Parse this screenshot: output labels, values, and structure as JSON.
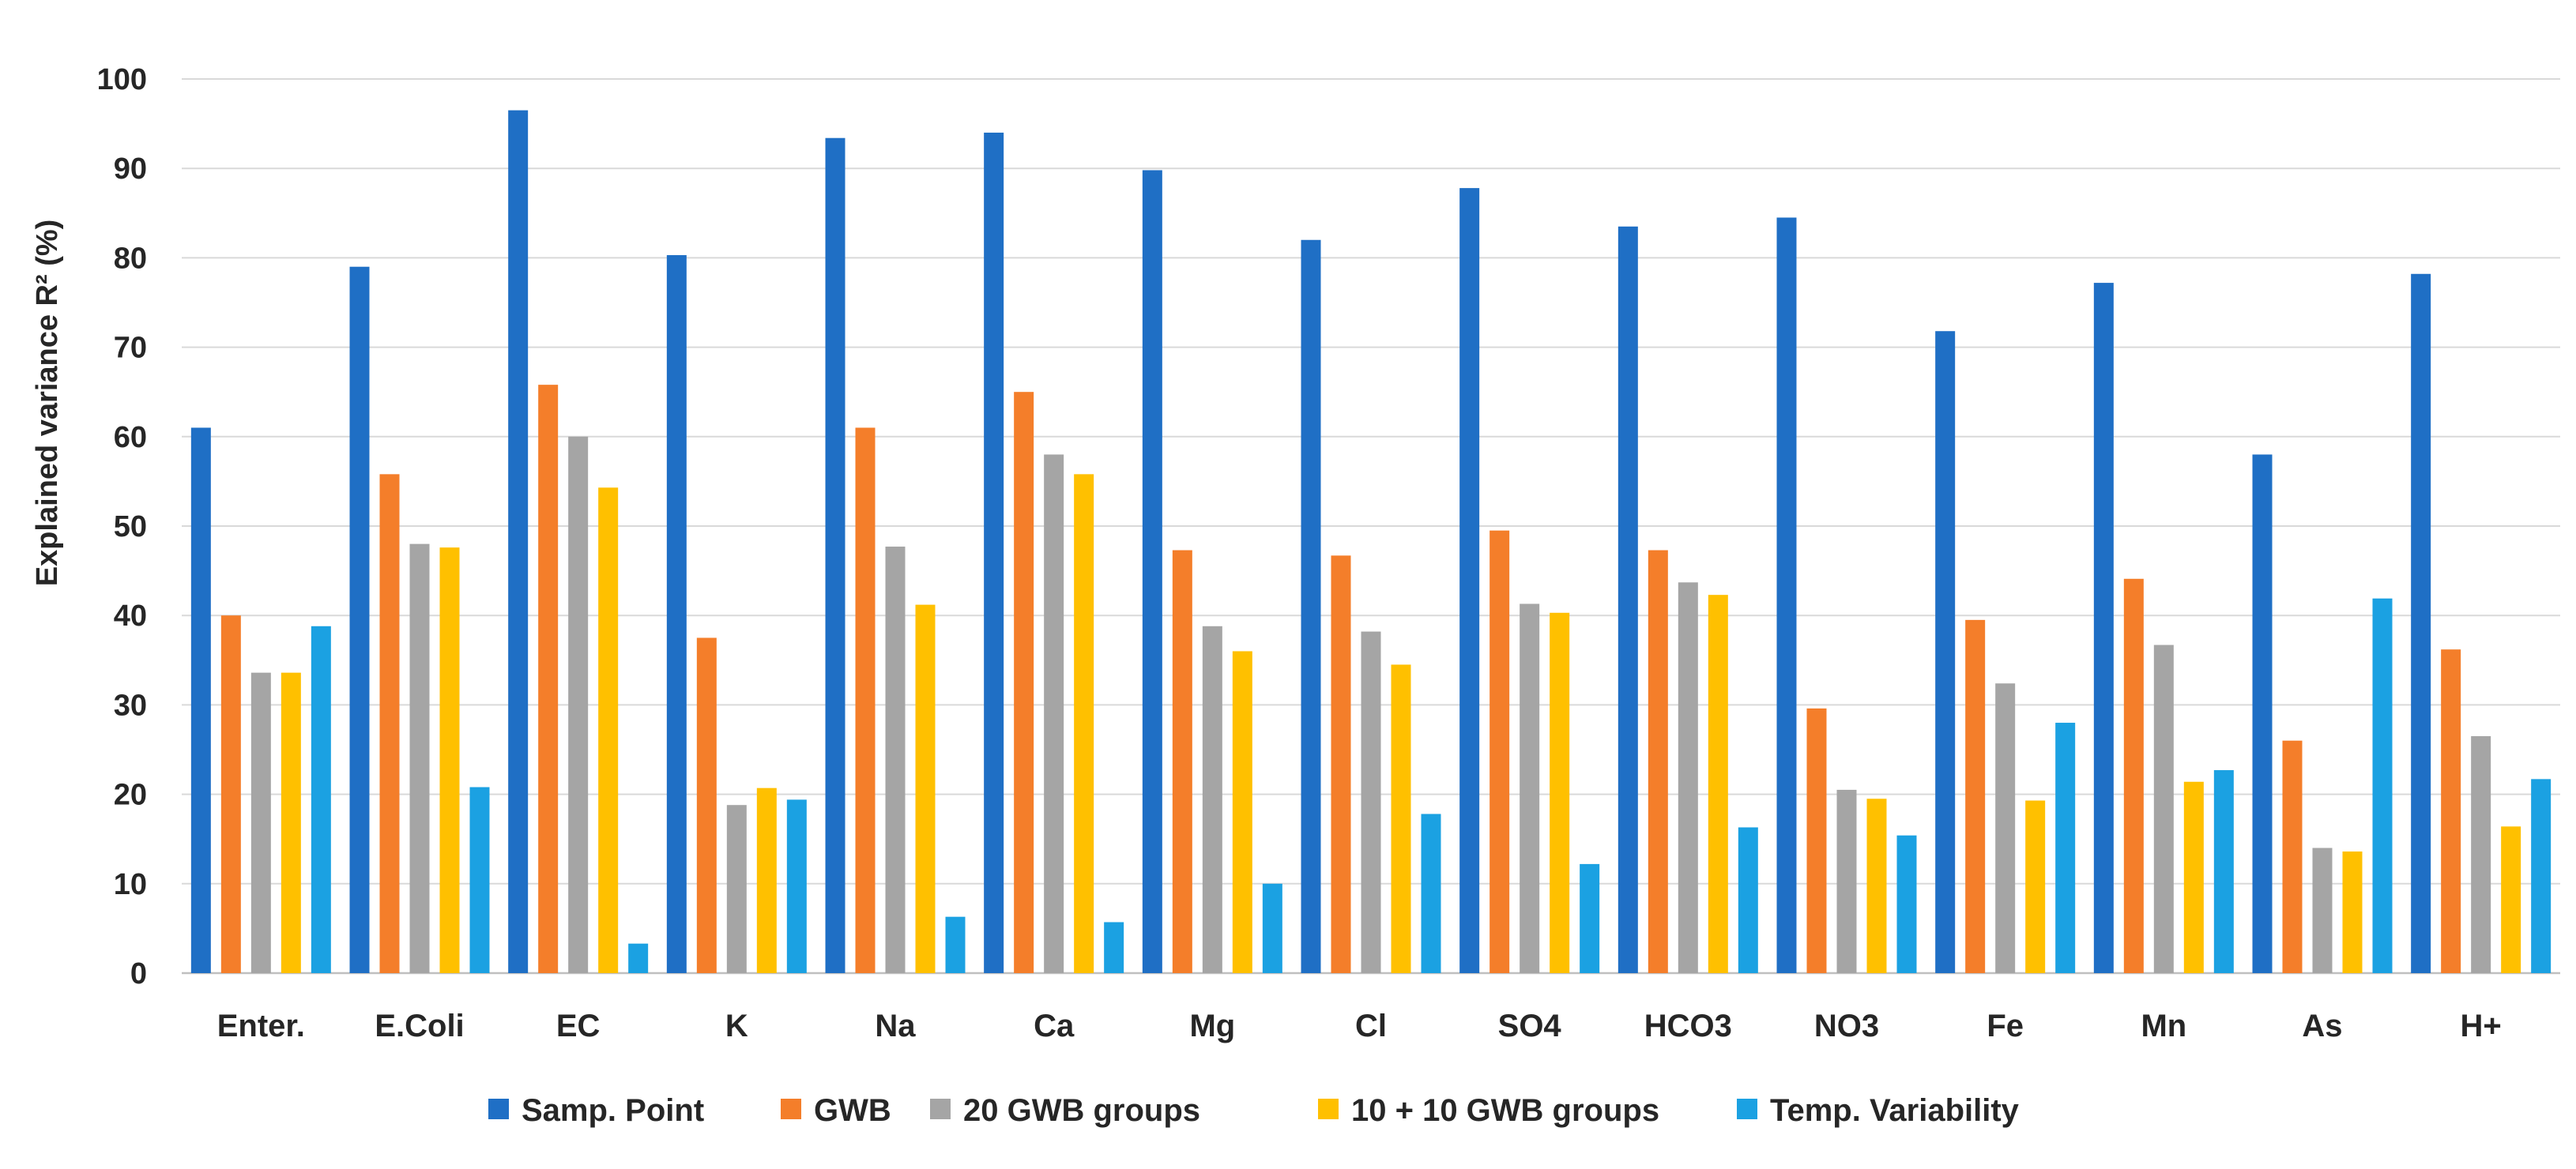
{
  "chart_data": {
    "type": "bar",
    "title": "",
    "xlabel": "",
    "ylabel": "Explained variance R² (%)",
    "ylim": [
      0,
      100
    ],
    "yticks": [
      0,
      10,
      20,
      30,
      40,
      50,
      60,
      70,
      80,
      90,
      100
    ],
    "grid": true,
    "legend_position": "bottom",
    "categories": [
      "Enter.",
      "E.Coli",
      "EC",
      "K",
      "Na",
      "Ca",
      "Mg",
      "Cl",
      "SO4",
      "HCO3",
      "NO3",
      "Fe",
      "Mn",
      "As",
      "H+"
    ],
    "series": [
      {
        "name": "Samp. Point",
        "color": "#1f6fc5",
        "values": [
          61,
          79,
          96.5,
          80.3,
          93.4,
          94,
          89.8,
          82,
          87.8,
          83.5,
          84.5,
          71.8,
          77.2,
          58,
          78.2
        ]
      },
      {
        "name": "GWB",
        "color": "#f47e2a",
        "values": [
          40,
          55.8,
          65.8,
          37.5,
          61,
          65,
          47.3,
          46.7,
          49.5,
          47.3,
          29.6,
          39.5,
          44.1,
          26,
          36.2
        ]
      },
      {
        "name": "20 GWB groups",
        "color": "#a5a5a5",
        "values": [
          33.6,
          48,
          60,
          18.8,
          47.7,
          58,
          38.8,
          38.2,
          41.3,
          43.7,
          20.5,
          32.4,
          36.7,
          14,
          26.5
        ]
      },
      {
        "name": "10 + 10 GWB groups",
        "color": "#ffc000",
        "values": [
          33.6,
          47.6,
          54.3,
          20.7,
          41.2,
          55.8,
          36,
          34.5,
          40.3,
          42.3,
          19.5,
          19.3,
          21.4,
          13.6,
          16.4
        ]
      },
      {
        "name": "Temp. Variability",
        "color": "#1ba1e2",
        "values": [
          38.8,
          20.8,
          3.3,
          19.4,
          6.3,
          5.7,
          10,
          17.8,
          12.2,
          16.3,
          15.4,
          28,
          22.7,
          41.9,
          21.7
        ]
      }
    ]
  }
}
